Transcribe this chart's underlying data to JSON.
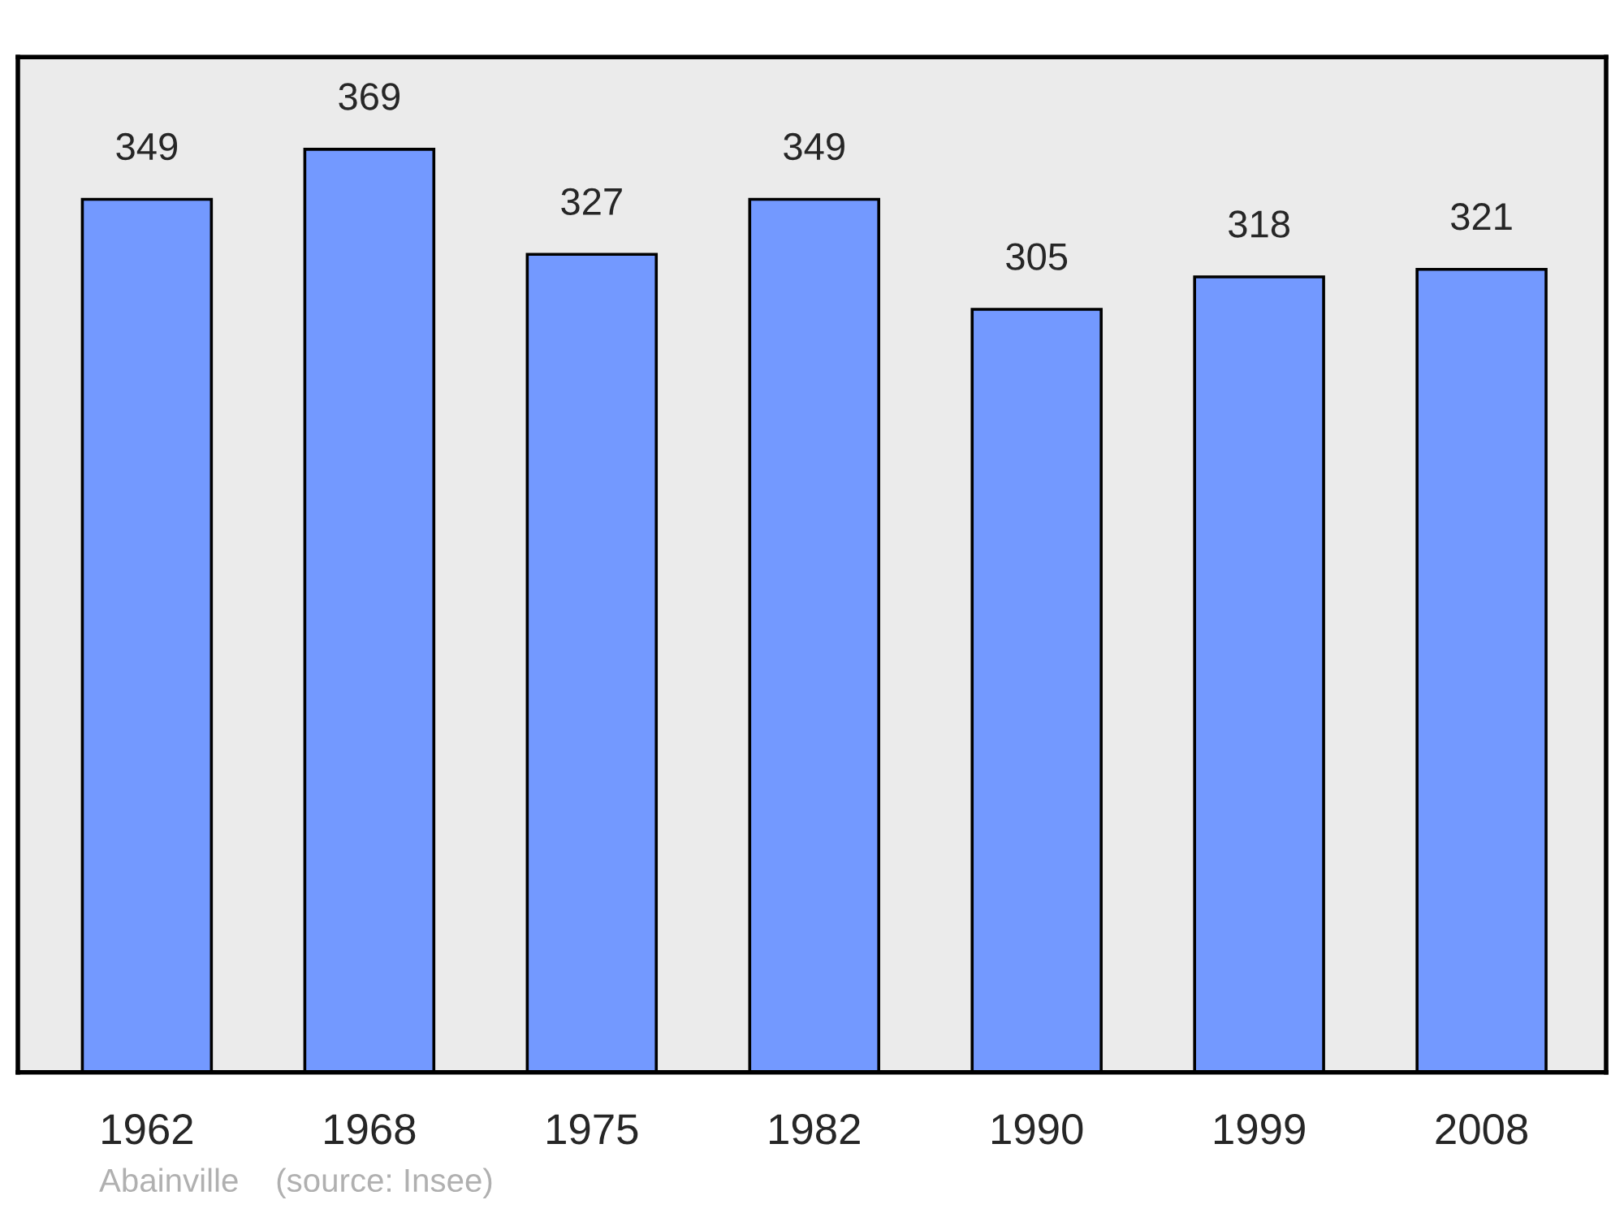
{
  "chart_data": {
    "type": "bar",
    "categories": [
      "1962",
      "1968",
      "1975",
      "1982",
      "1990",
      "1999",
      "2008"
    ],
    "values": [
      349,
      369,
      327,
      349,
      305,
      318,
      321
    ],
    "color": "#7399ff",
    "data_labels": true,
    "tick_labels": "x",
    "grid": false,
    "legend": false,
    "annotations": [
      "Abainville    (source: Insee)"
    ]
  }
}
